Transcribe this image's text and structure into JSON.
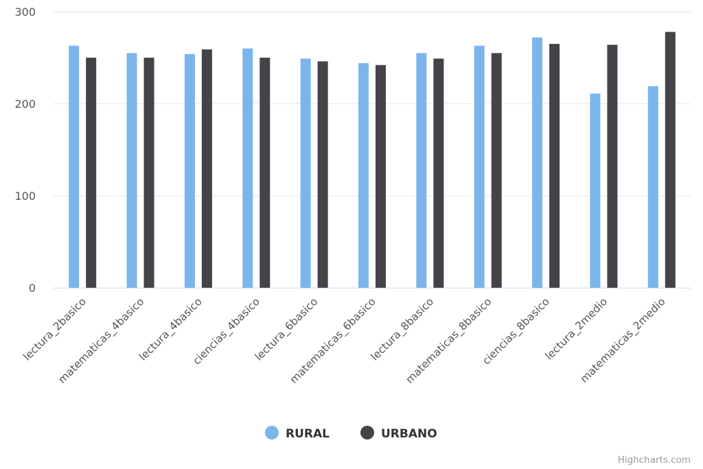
{
  "chart_data": {
    "type": "bar",
    "categories": [
      "lectura_2basico",
      "matematicas_4basico",
      "lectura_4basico",
      "ciencias_4basico",
      "lectura_6basico",
      "matematicas_6basico",
      "lectura_8basico",
      "matematicas_8basico",
      "ciencias_8basico",
      "lectura_2medio",
      "matematicas_2medio"
    ],
    "series": [
      {
        "name": "RURAL",
        "color": "#7cb5ec",
        "values": [
          263,
          255,
          254,
          260,
          249,
          244,
          255,
          263,
          272,
          211,
          219
        ]
      },
      {
        "name": "URBANO",
        "color": "#434348",
        "values": [
          250,
          250,
          259,
          250,
          246,
          242,
          249,
          255,
          265,
          264,
          278
        ]
      }
    ],
    "ylim": [
      0,
      300
    ],
    "yticks": [
      "0",
      "100",
      "200",
      "300"
    ],
    "grid": true,
    "legend_position": "bottom-center",
    "credits": "Highcharts.com"
  }
}
